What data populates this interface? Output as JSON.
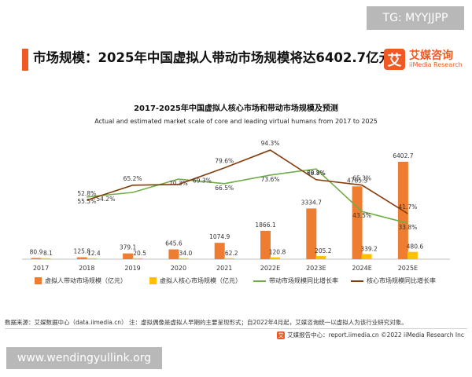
{
  "watermark_top": "TG: MYYJJPP",
  "headline": "市场规模：2025年中国虚拟人带动市场规模将达6402.7亿元",
  "logo": {
    "mark": "艾",
    "name": "艾媒咨询",
    "en": "iiMedia Research"
  },
  "chart_data": {
    "type": "bar",
    "title": "2017-2025年中国虚拟人核心市场和带动市场规模及预测",
    "subtitle": "Actual and estimated market scale of core and leading virtual humans from 2017 to 2025",
    "categories": [
      "2017",
      "2018",
      "2019",
      "2020",
      "2021",
      "2022E",
      "2023E",
      "2024E",
      "2025E"
    ],
    "series": [
      {
        "name": "虚拟人带动市场规模（亿元）",
        "kind": "bar",
        "color": "#ef7d31",
        "values": [
          80.9,
          125.8,
          379.1,
          645.6,
          1074.9,
          1866.1,
          3334.7,
          4785.3,
          6402.7
        ],
        "labels": [
          "80.9",
          "125.8",
          "379.1",
          "645.6",
          "1074.9",
          "1866.1",
          "3334.7",
          "4785.3",
          "6402.7"
        ]
      },
      {
        "name": "虚拟人核心市场规模（亿元）",
        "kind": "bar",
        "color": "#ffc000",
        "values": [
          8.1,
          12.4,
          20.5,
          34.0,
          62.2,
          120.8,
          205.2,
          339.2,
          480.6
        ],
        "labels": [
          "8.1",
          "12.4",
          "20.5",
          "34.0",
          "62.2",
          "120.8",
          "205.2",
          "339.2",
          "480.6"
        ]
      },
      {
        "name": "带动市场规模同比增长率",
        "kind": "line",
        "color": "#70ad47",
        "values": [
          null,
          55.5,
          201.4,
          70.3,
          66.5,
          73.6,
          78.7,
          43.5,
          33.8
        ],
        "labels": [
          "",
          "55.5%",
          "",
          "70.3%",
          "66.5%",
          "73.6%",
          "78.7%",
          "43.5%",
          "33.8%"
        ]
      },
      {
        "name": "核心市场规模同比增长率",
        "kind": "line",
        "color": "#843c0c",
        "values": [
          null,
          52.8,
          65.2,
          65.9,
          79.6,
          94.3,
          69.8,
          65.3,
          41.7
        ],
        "labels": [
          "",
          "52.8%",
          "65.2%",
          "",
          "79.6%",
          "94.3%",
          "69.8%",
          "65.3%",
          "41.7%"
        ]
      }
    ],
    "extra_labels": [
      "54.2%",
      "69.3%"
    ],
    "legend_position": "bottom",
    "grid": false
  },
  "source_note": "数据来源：艾媒数据中心（data.iimedia.cn）  注：虚拟偶像是虚拟人早期的主要呈现形式；自2022年4月起，艾媒咨询统一以虚拟人为该行业研究对象。",
  "footer": {
    "icon": "艾",
    "text": "艾媒报告中心：report.iimedia.cn   ©2022 iiMedia Research Inc"
  },
  "watermark_bottom": "www.wendingyullink.org"
}
